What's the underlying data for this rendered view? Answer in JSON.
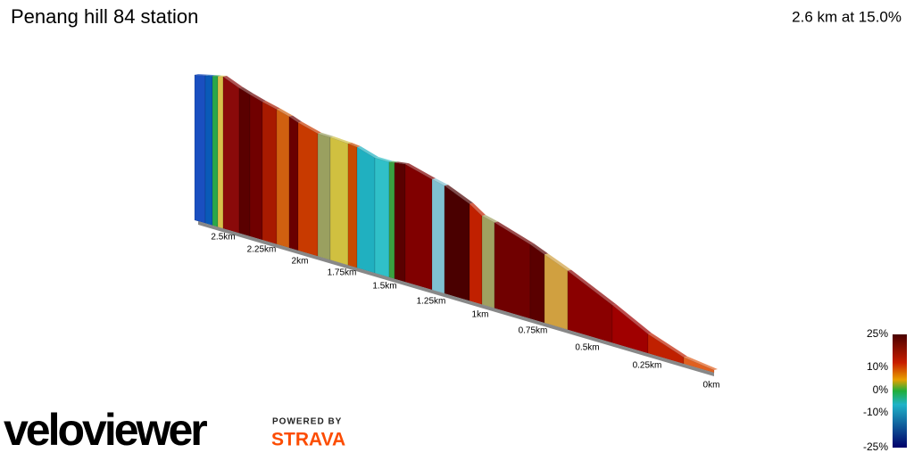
{
  "header": {
    "title": "Penang hill 84 station",
    "stats": "2.6 km at 15.0%"
  },
  "distance_labels": [
    "2.5km",
    "2.25km",
    "2km",
    "1.75km",
    "1.5km",
    "1.25km",
    "1km",
    "0.75km",
    "0.5km",
    "0.25km",
    "0km"
  ],
  "gradient_scale": [
    "25%",
    "10%",
    "0%",
    "-10%",
    "-25%"
  ],
  "branding": {
    "logo": "veloviewer",
    "powered_by": "POWERED BY",
    "strava": "STRAVA"
  }
}
